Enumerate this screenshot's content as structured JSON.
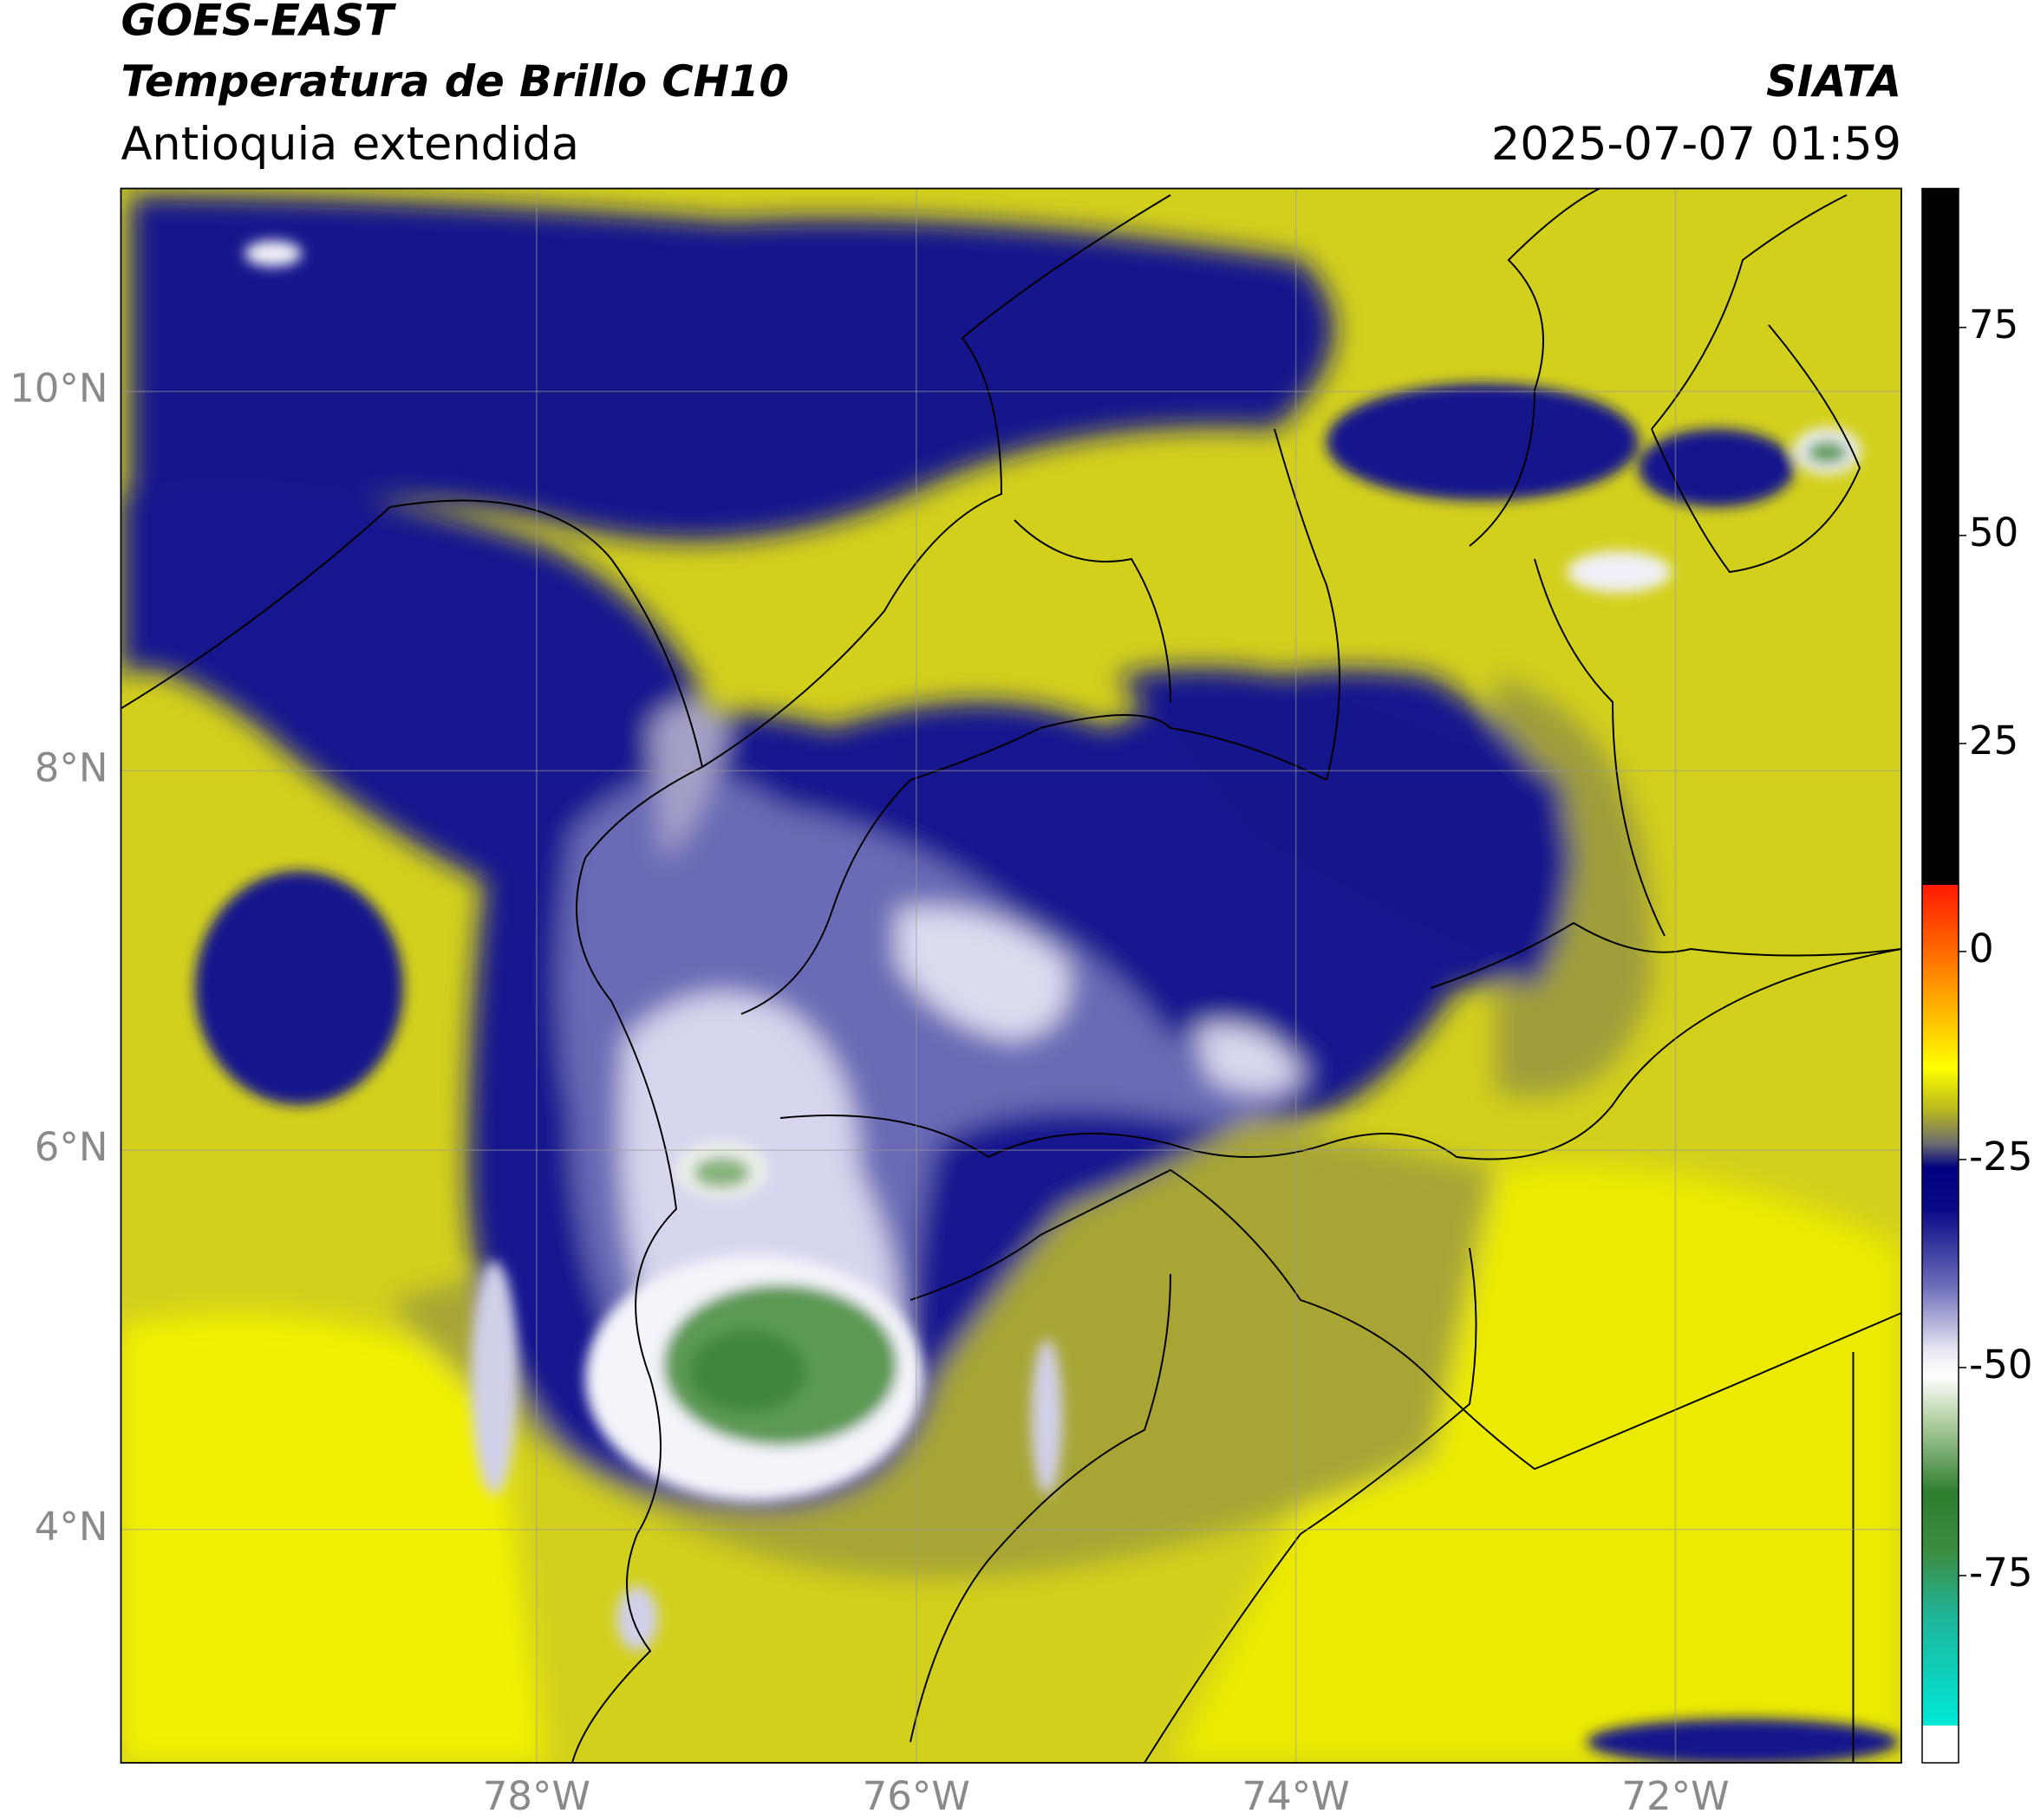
{
  "header": {
    "satellite": "GOES-EAST",
    "product": "Temperatura de Brillo CH10",
    "region": "Antioquia extendida",
    "organization": "SIATA",
    "datetime": "2025-07-07 01:59"
  },
  "map": {
    "xlim": [
      -80.19,
      -70.81
    ],
    "ylim": [
      2.77,
      11.07
    ],
    "yticks": [
      {
        "value": 4,
        "label": "4°N"
      },
      {
        "value": 6,
        "label": "6°N"
      },
      {
        "value": 8,
        "label": "8°N"
      },
      {
        "value": 10,
        "label": "10°N"
      }
    ],
    "xticks": [
      {
        "value": -78,
        "label": "78°W"
      },
      {
        "value": -76,
        "label": "76°W"
      },
      {
        "value": -74,
        "label": "74°W"
      },
      {
        "value": -72,
        "label": "72°W"
      }
    ],
    "grid": true
  },
  "colorbar": {
    "lim": [
      -97.5,
      91.7
    ],
    "ticks": [
      -75,
      -50,
      -25,
      0,
      25,
      50,
      75
    ],
    "stops": [
      [
        91.7,
        "#000000"
      ],
      [
        8,
        "#000000"
      ],
      [
        8,
        "#ff1a00"
      ],
      [
        0,
        "#ff6a00"
      ],
      [
        -8,
        "#ffc000"
      ],
      [
        -14,
        "#ffff00"
      ],
      [
        -19,
        "#b8b820"
      ],
      [
        -23,
        "#6e6e6e"
      ],
      [
        -26,
        "#000080"
      ],
      [
        -31,
        "#0a0a88"
      ],
      [
        -40,
        "#6a6ab8"
      ],
      [
        -48,
        "#e8e8f4"
      ],
      [
        -51,
        "#ffffff"
      ],
      [
        -56,
        "#b8d4a8"
      ],
      [
        -65,
        "#2f7d2f"
      ],
      [
        -72,
        "#3c8c40"
      ],
      [
        -80,
        "#1fb59a"
      ],
      [
        -93,
        "#00e8d8"
      ],
      [
        -93,
        "#ffffff"
      ],
      [
        -97.5,
        "#ffffff"
      ]
    ]
  }
}
